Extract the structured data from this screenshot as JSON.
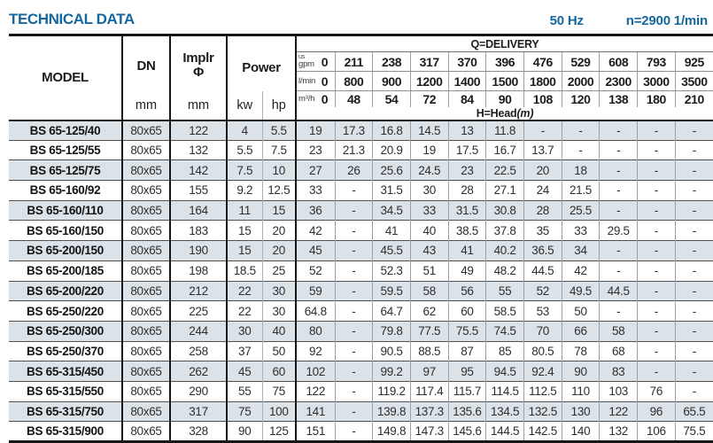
{
  "header": {
    "title": "TECHNICAL DATA",
    "frequency": "50 Hz",
    "speed": "n=2900 1/min"
  },
  "table": {
    "model_header": "MODEL",
    "dn_header": "DN",
    "implr_header_line1": "Implr",
    "implr_header_line2": "Φ",
    "power_header": "Power",
    "mm_label": "mm",
    "kw_label": "kw",
    "hp_label": "hp",
    "delivery_title": "Q=DELIVERY",
    "head_title": "H=Head",
    "head_unit": "(m)",
    "unit_rows": [
      {
        "label_top": "us",
        "label": "gpm",
        "values": [
          "0",
          "211",
          "238",
          "317",
          "370",
          "396",
          "476",
          "529",
          "608",
          "793",
          "925"
        ]
      },
      {
        "label": "l/min",
        "values": [
          "0",
          "800",
          "900",
          "1200",
          "1400",
          "1500",
          "1800",
          "2000",
          "2300",
          "3000",
          "3500"
        ]
      },
      {
        "label": "m³/h",
        "values": [
          "0",
          "48",
          "54",
          "72",
          "84",
          "90",
          "108",
          "120",
          "138",
          "180",
          "210"
        ]
      }
    ],
    "rows": [
      {
        "model": "BS 65-125/40",
        "dn": "80x65",
        "implr": "122",
        "kw": "4",
        "hp": "5.5",
        "head": [
          "19",
          "17.3",
          "16.8",
          "14.5",
          "13",
          "11.8",
          "-",
          "-",
          "-",
          "-",
          "-"
        ]
      },
      {
        "model": "BS 65-125/55",
        "dn": "80x65",
        "implr": "132",
        "kw": "5.5",
        "hp": "7.5",
        "head": [
          "23",
          "21.3",
          "20.9",
          "19",
          "17.5",
          "16.7",
          "13.7",
          "-",
          "-",
          "-",
          "-"
        ]
      },
      {
        "model": "BS 65-125/75",
        "dn": "80x65",
        "implr": "142",
        "kw": "7.5",
        "hp": "10",
        "head": [
          "27",
          "26",
          "25.6",
          "24.5",
          "23",
          "22.5",
          "20",
          "18",
          "-",
          "-",
          "-"
        ]
      },
      {
        "model": "BS 65-160/92",
        "dn": "80x65",
        "implr": "155",
        "kw": "9.2",
        "hp": "12.5",
        "head": [
          "33",
          "-",
          "31.5",
          "30",
          "28",
          "27.1",
          "24",
          "21.5",
          "-",
          "-",
          "-"
        ]
      },
      {
        "model": "BS 65-160/110",
        "dn": "80x65",
        "implr": "164",
        "kw": "11",
        "hp": "15",
        "head": [
          "36",
          "-",
          "34.5",
          "33",
          "31.5",
          "30.8",
          "28",
          "25.5",
          "-",
          "-",
          "-"
        ]
      },
      {
        "model": "BS 65-160/150",
        "dn": "80x65",
        "implr": "183",
        "kw": "15",
        "hp": "20",
        "head": [
          "42",
          "-",
          "41",
          "40",
          "38.5",
          "37.8",
          "35",
          "33",
          "29.5",
          "-",
          "-"
        ]
      },
      {
        "model": "BS 65-200/150",
        "dn": "80x65",
        "implr": "190",
        "kw": "15",
        "hp": "20",
        "head": [
          "45",
          "-",
          "45.5",
          "43",
          "41",
          "40.2",
          "36.5",
          "34",
          "-",
          "-",
          "-"
        ]
      },
      {
        "model": "BS 65-200/185",
        "dn": "80x65",
        "implr": "198",
        "kw": "18.5",
        "hp": "25",
        "head": [
          "52",
          "-",
          "52.3",
          "51",
          "49",
          "48.2",
          "44.5",
          "42",
          "-",
          "-",
          "-"
        ]
      },
      {
        "model": "BS 65-200/220",
        "dn": "80x65",
        "implr": "212",
        "kw": "22",
        "hp": "30",
        "head": [
          "59",
          "-",
          "59.5",
          "58",
          "56",
          "55",
          "52",
          "49.5",
          "44.5",
          "-",
          "-"
        ]
      },
      {
        "model": "BS 65-250/220",
        "dn": "80x65",
        "implr": "225",
        "kw": "22",
        "hp": "30",
        "head": [
          "64.8",
          "-",
          "64.7",
          "62",
          "60",
          "58.5",
          "53",
          "50",
          "-",
          "-",
          "-"
        ]
      },
      {
        "model": "BS 65-250/300",
        "dn": "80x65",
        "implr": "244",
        "kw": "30",
        "hp": "40",
        "head": [
          "80",
          "-",
          "79.8",
          "77.5",
          "75.5",
          "74.5",
          "70",
          "66",
          "58",
          "-",
          "-"
        ]
      },
      {
        "model": "BS 65-250/370",
        "dn": "80x65",
        "implr": "258",
        "kw": "37",
        "hp": "50",
        "head": [
          "92",
          "-",
          "90.5",
          "88.5",
          "87",
          "85",
          "80.5",
          "78",
          "68",
          "-",
          "-"
        ]
      },
      {
        "model": "BS 65-315/450",
        "dn": "80x65",
        "implr": "262",
        "kw": "45",
        "hp": "60",
        "head": [
          "102",
          "-",
          "99.2",
          "97",
          "95",
          "94.5",
          "92.4",
          "90",
          "83",
          "-",
          "-"
        ]
      },
      {
        "model": "BS 65-315/550",
        "dn": "80x65",
        "implr": "290",
        "kw": "55",
        "hp": "75",
        "head": [
          "122",
          "-",
          "119.2",
          "117.4",
          "115.7",
          "114.5",
          "112.5",
          "110",
          "103",
          "76",
          "-"
        ]
      },
      {
        "model": "BS 65-315/750",
        "dn": "80x65",
        "implr": "317",
        "kw": "75",
        "hp": "100",
        "head": [
          "141",
          "-",
          "139.8",
          "137.3",
          "135.6",
          "134.5",
          "132.5",
          "130",
          "122",
          "96",
          "65.5"
        ]
      },
      {
        "model": "BS 65-315/900",
        "dn": "80x65",
        "implr": "328",
        "kw": "90",
        "hp": "125",
        "head": [
          "151",
          "-",
          "149.8",
          "147.3",
          "145.6",
          "144.5",
          "142.5",
          "140",
          "132",
          "106",
          "75.5"
        ]
      }
    ]
  }
}
